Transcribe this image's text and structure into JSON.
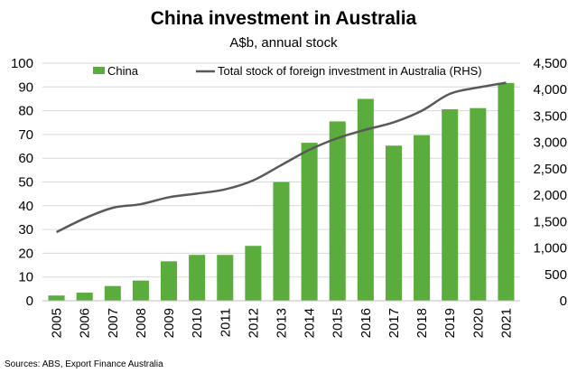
{
  "chart_data": {
    "type": "bar",
    "title": "China investment in Australia",
    "subtitle": "A$b, annual stock",
    "categories": [
      "2005",
      "2006",
      "2007",
      "2008",
      "2009",
      "2010",
      "2011",
      "2012",
      "2013",
      "2014",
      "2015",
      "2016",
      "2017",
      "2018",
      "2019",
      "2020",
      "2021"
    ],
    "series": [
      {
        "name": "China",
        "type": "bar",
        "axis": "left",
        "color": "#5aac3c",
        "values": [
          2.2,
          3.4,
          6.2,
          8.5,
          16.6,
          19.3,
          19.3,
          23.1,
          50.0,
          66.5,
          75.5,
          85.0,
          65.3,
          69.7,
          80.6,
          81.1,
          91.7
        ]
      },
      {
        "name": "Total stock of foreign investment in Australia (RHS)",
        "type": "line",
        "axis": "right",
        "color": "#595959",
        "values": [
          1300,
          1560,
          1760,
          1830,
          1960,
          2030,
          2110,
          2280,
          2570,
          2860,
          3080,
          3240,
          3380,
          3600,
          3920,
          4040,
          4130
        ]
      }
    ],
    "ylim_left": [
      0,
      100
    ],
    "yticks_left": [
      "0",
      "10",
      "20",
      "30",
      "40",
      "50",
      "60",
      "70",
      "80",
      "90",
      "100"
    ],
    "ylim_right": [
      0,
      4500
    ],
    "yticks_right": [
      "0",
      "500",
      "1,000",
      "1,500",
      "2,000",
      "2,500",
      "3,000",
      "3,500",
      "4,000",
      "4,500"
    ],
    "legend": [
      "China",
      "Total stock of foreign investment in Australia (RHS)"
    ],
    "legend_position": "top",
    "grid": true,
    "source": "Sources: ABS, Export Finance Australia"
  }
}
